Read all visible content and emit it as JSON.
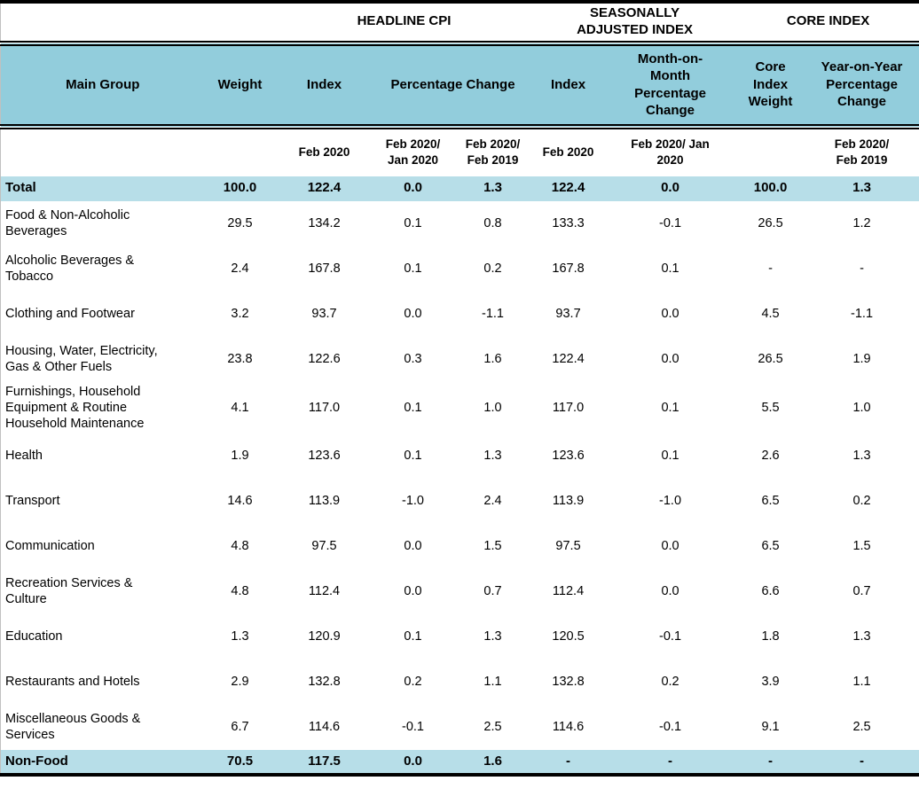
{
  "title": "Consumer Price Index summary table, Feb 2020",
  "colors": {
    "header_bg": "#92CDDC",
    "highlight_bg": "#B7DEE8",
    "rule_color": "#000000"
  },
  "header": {
    "groups": {
      "headline": "HEADLINE CPI",
      "seasonally_adjusted": "SEASONALLY ADJUSTED INDEX",
      "core": "CORE INDEX"
    },
    "columns": {
      "main_group": "Main Group",
      "weight": "Weight",
      "index": "Index",
      "pct_change": "Percentage Change",
      "sa_index": "Index",
      "mom_pct_change": "Month-on-Month Percentage Change",
      "core_index_weight": "Core Index Weight",
      "yoy_pct_change": "Year-on-Year Percentage Change"
    },
    "periods": {
      "index": "Feb 2020",
      "mom": "Feb 2020/ Jan 2020",
      "yoy": "Feb 2020/ Feb 2019",
      "sa_index": "Feb 2020",
      "sa_mom": "Feb 2020/ Jan 2020",
      "core_yoy": "Feb 2020/ Feb 2019"
    }
  },
  "rows": [
    {
      "label": "Total",
      "highlight": true,
      "values": [
        "100.0",
        "122.4",
        "0.0",
        "1.3",
        "122.4",
        "0.0",
        "100.0",
        "1.3"
      ]
    },
    {
      "label": "Food & Non-Alcoholic Beverages",
      "highlight": false,
      "values": [
        "29.5",
        "134.2",
        "0.1",
        "0.8",
        "133.3",
        "-0.1",
        "26.5",
        "1.2"
      ]
    },
    {
      "label": "Alcoholic Beverages & Tobacco",
      "highlight": false,
      "values": [
        "2.4",
        "167.8",
        "0.1",
        "0.2",
        "167.8",
        "0.1",
        "-",
        "-"
      ]
    },
    {
      "label": "Clothing and Footwear",
      "highlight": false,
      "values": [
        "3.2",
        "93.7",
        "0.0",
        "-1.1",
        "93.7",
        "0.0",
        "4.5",
        "-1.1"
      ]
    },
    {
      "label": "Housing, Water, Electricity, Gas & Other Fuels",
      "highlight": false,
      "values": [
        "23.8",
        "122.6",
        "0.3",
        "1.6",
        "122.4",
        "0.0",
        "26.5",
        "1.9"
      ]
    },
    {
      "label": "Furnishings, Household Equipment & Routine Household Maintenance",
      "highlight": false,
      "values": [
        "4.1",
        "117.0",
        "0.1",
        "1.0",
        "117.0",
        "0.1",
        "5.5",
        "1.0"
      ]
    },
    {
      "label": "Health",
      "highlight": false,
      "values": [
        "1.9",
        "123.6",
        "0.1",
        "1.3",
        "123.6",
        "0.1",
        "2.6",
        "1.3"
      ]
    },
    {
      "label": "Transport",
      "highlight": false,
      "values": [
        "14.6",
        "113.9",
        "-1.0",
        "2.4",
        "113.9",
        "-1.0",
        "6.5",
        "0.2"
      ]
    },
    {
      "label": "Communication",
      "highlight": false,
      "values": [
        "4.8",
        "97.5",
        "0.0",
        "1.5",
        "97.5",
        "0.0",
        "6.5",
        "1.5"
      ]
    },
    {
      "label": "Recreation Services & Culture",
      "highlight": false,
      "values": [
        "4.8",
        "112.4",
        "0.0",
        "0.7",
        "112.4",
        "0.0",
        "6.6",
        "0.7"
      ]
    },
    {
      "label": "Education",
      "highlight": false,
      "values": [
        "1.3",
        "120.9",
        "0.1",
        "1.3",
        "120.5",
        "-0.1",
        "1.8",
        "1.3"
      ]
    },
    {
      "label": "Restaurants and Hotels",
      "highlight": false,
      "values": [
        "2.9",
        "132.8",
        "0.2",
        "1.1",
        "132.8",
        "0.2",
        "3.9",
        "1.1"
      ]
    },
    {
      "label": "Miscellaneous Goods & Services",
      "highlight": false,
      "values": [
        "6.7",
        "114.6",
        "-0.1",
        "2.5",
        "114.6",
        "-0.1",
        "9.1",
        "2.5"
      ]
    },
    {
      "label": "Non-Food",
      "highlight": true,
      "values": [
        "70.5",
        "117.5",
        "0.0",
        "1.6",
        "-",
        "-",
        "-",
        "-"
      ]
    }
  ]
}
